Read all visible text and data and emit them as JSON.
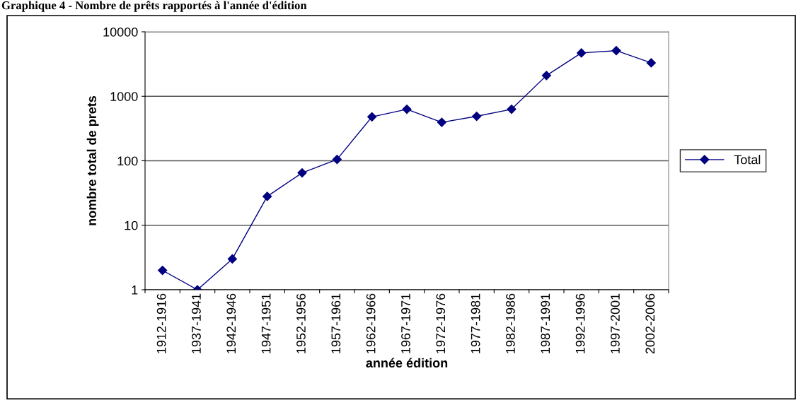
{
  "chart_data": {
    "type": "line",
    "title": "Graphique 4 - Nombre de prêts rapportés à l'année d'édition",
    "xlabel": "année édition",
    "ylabel": "nombre total de prets",
    "categories": [
      "1912-1916",
      "1937-1941",
      "1942-1946",
      "1947-1951",
      "1952-1956",
      "1957-1961",
      "1962-1966",
      "1967-1971",
      "1972-1976",
      "1977-1981",
      "1982-1986",
      "1987-1991",
      "1992-1996",
      "1997-2001",
      "2002-2006"
    ],
    "series": [
      {
        "name": "Total",
        "color": "#000080",
        "values": [
          2,
          1,
          3,
          28,
          65,
          105,
          480,
          630,
          395,
          490,
          630,
          2100,
          4700,
          5100,
          3300
        ]
      }
    ],
    "log": true,
    "ylim": [
      1,
      10000
    ],
    "yticks": [
      1,
      10,
      100,
      1000,
      10000
    ],
    "grid": "y",
    "legend": "right",
    "marker": "diamond",
    "line_style": "solid"
  }
}
